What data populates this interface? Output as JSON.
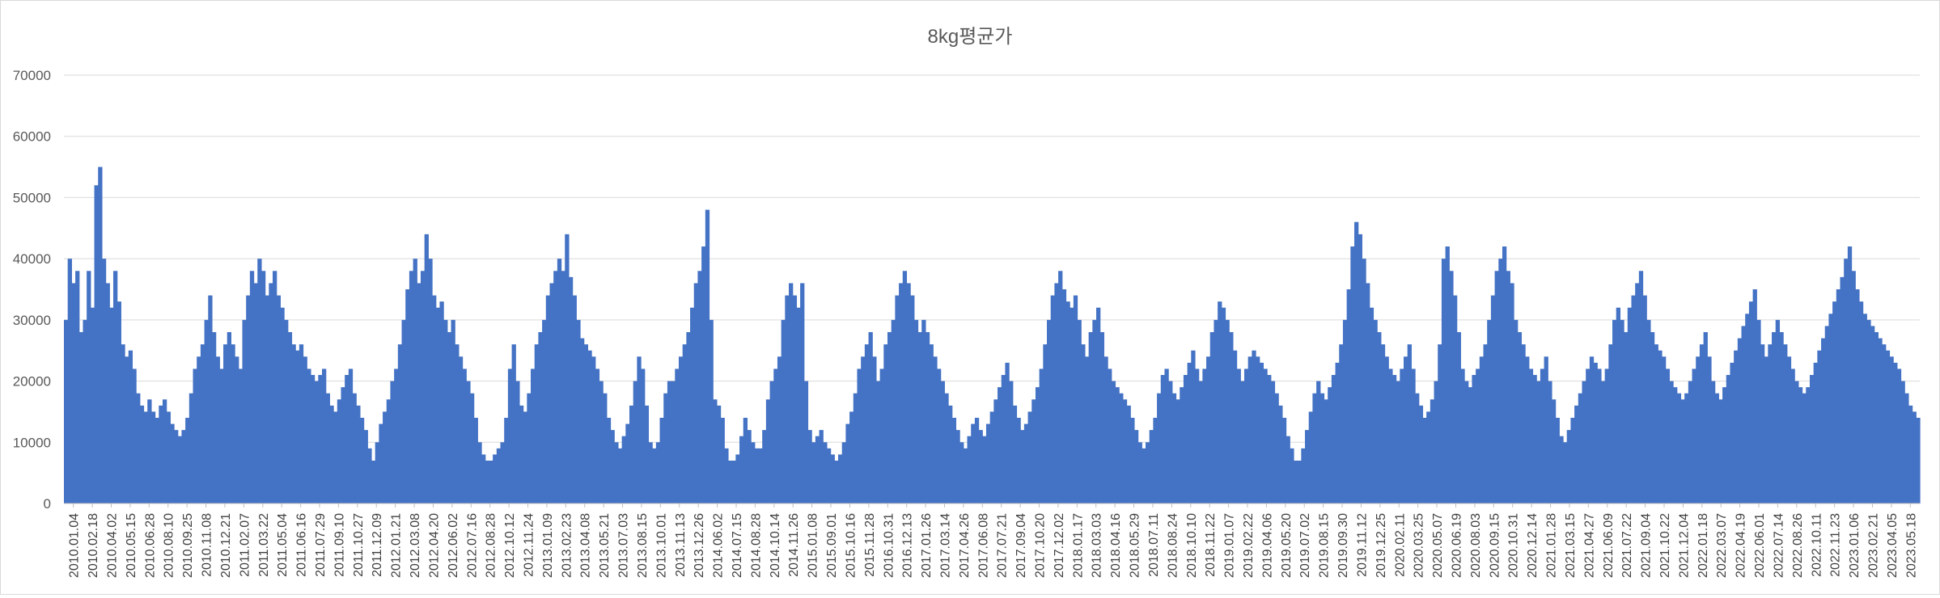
{
  "chart_data": {
    "type": "bar",
    "title": "8kg평균가",
    "xlabel": "",
    "ylabel": "",
    "ylim": [
      0,
      70000
    ],
    "yticks": [
      0,
      10000,
      20000,
      30000,
      40000,
      50000,
      60000,
      70000
    ],
    "grid": true,
    "legend": "none",
    "bar_color": "#4472C4",
    "x_tick_labels": [
      "2010.01.04",
      "2010.02.18",
      "2010.04.02",
      "2010.05.15",
      "2010.06.28",
      "2010.08.10",
      "2010.09.25",
      "2010.11.08",
      "2010.12.21",
      "2011.02.07",
      "2011.03.22",
      "2011.05.04",
      "2011.06.16",
      "2011.07.29",
      "2011.09.10",
      "2011.10.27",
      "2011.12.09",
      "2012.01.21",
      "2012.03.08",
      "2012.04.20",
      "2012.06.02",
      "2012.07.16",
      "2012.08.28",
      "2012.10.12",
      "2012.11.24",
      "2013.01.09",
      "2013.02.23",
      "2013.04.08",
      "2013.05.21",
      "2013.07.03",
      "2013.08.15",
      "2013.10.01",
      "2013.11.13",
      "2013.12.26",
      "2014.06.02",
      "2014.07.15",
      "2014.08.28",
      "2014.10.14",
      "2014.11.26",
      "2015.01.08",
      "2015.09.01",
      "2015.10.16",
      "2015.11.28",
      "2016.10.31",
      "2016.12.13",
      "2017.01.26",
      "2017.03.14",
      "2017.04.26",
      "2017.06.08",
      "2017.07.21",
      "2017.09.04",
      "2017.10.20",
      "2017.12.02",
      "2018.01.17",
      "2018.03.03",
      "2018.04.16",
      "2018.05.29",
      "2018.07.11",
      "2018.08.24",
      "2018.10.10",
      "2018.11.22",
      "2019.01.07",
      "2019.02.22",
      "2019.04.06",
      "2019.05.20",
      "2019.07.02",
      "2019.08.15",
      "2019.09.30",
      "2019.11.12",
      "2019.12.25",
      "2020.02.11",
      "2020.03.25",
      "2020.05.07",
      "2020.06.19",
      "2020.08.03",
      "2020.09.15",
      "2020.10.31",
      "2020.12.14",
      "2021.01.28",
      "2021.03.15",
      "2021.04.27",
      "2021.06.09",
      "2021.07.22",
      "2021.09.04",
      "2021.10.22",
      "2021.12.04",
      "2022.01.18",
      "2022.03.07",
      "2022.04.19",
      "2022.06.01",
      "2022.07.14",
      "2022.08.26",
      "2022.10.11",
      "2022.11.23",
      "2023.01.06",
      "2023.02.21",
      "2023.04.05",
      "2023.05.18"
    ],
    "series": [
      {
        "x_start": "2010.01.04",
        "x_end": "2023.06.01",
        "values": [
          30000,
          40000,
          36000,
          38000,
          28000,
          30000,
          38000,
          32000,
          52000,
          55000,
          40000,
          36000,
          32000,
          38000,
          33000,
          26000,
          24000,
          25000,
          22000,
          18000,
          16000,
          15000,
          17000,
          15000,
          14000,
          16000,
          17000,
          15000,
          13000,
          12000,
          11000,
          12000,
          14000,
          18000,
          22000,
          24000,
          26000,
          30000,
          34000,
          28000,
          24000,
          22000,
          26000,
          28000,
          26000,
          24000,
          22000,
          30000,
          34000,
          38000,
          36000,
          40000,
          38000,
          34000,
          36000,
          38000,
          34000,
          32000,
          30000,
          28000,
          26000,
          25000,
          26000,
          24000,
          22000,
          21000,
          20000,
          21000,
          22000,
          18000,
          16000,
          15000,
          17000,
          19000,
          21000,
          22000,
          18000,
          16000,
          14000,
          12000,
          9000,
          7000,
          10000,
          13000,
          15000,
          17000,
          20000,
          22000,
          26000,
          30000,
          35000,
          38000,
          40000,
          36000,
          38000,
          44000,
          40000,
          34000,
          32000,
          33000,
          30000,
          28000,
          30000,
          26000,
          24000,
          22000,
          20000,
          18000,
          14000,
          10000,
          8000,
          7000,
          7000,
          8000,
          9000,
          10000,
          14000,
          22000,
          26000,
          20000,
          16000,
          15000,
          18000,
          22000,
          26000,
          28000,
          30000,
          34000,
          36000,
          38000,
          40000,
          38000,
          44000,
          37000,
          34000,
          30000,
          27000,
          26000,
          25000,
          24000,
          22000,
          20000,
          18000,
          14000,
          12000,
          10000,
          9000,
          11000,
          13000,
          16000,
          20000,
          24000,
          22000,
          16000,
          10000,
          9000,
          10000,
          14000,
          18000,
          20000,
          20000,
          22000,
          24000,
          26000,
          28000,
          32000,
          36000,
          38000,
          42000,
          48000,
          30000,
          17000,
          16000,
          14000,
          9000,
          7000,
          7000,
          8000,
          11000,
          14000,
          12000,
          10000,
          9000,
          9000,
          12000,
          17000,
          20000,
          22000,
          24000,
          30000,
          34000,
          36000,
          34000,
          32000,
          36000,
          20000,
          12000,
          10000,
          11000,
          12000,
          10000,
          9000,
          8000,
          7000,
          8000,
          10000,
          13000,
          15000,
          18000,
          22000,
          24000,
          26000,
          28000,
          24000,
          20000,
          22000,
          26000,
          28000,
          30000,
          34000,
          36000,
          38000,
          36000,
          34000,
          30000,
          28000,
          30000,
          28000,
          26000,
          24000,
          22000,
          20000,
          18000,
          16000,
          14000,
          12000,
          10000,
          9000,
          11000,
          13000,
          14000,
          12000,
          11000,
          13000,
          15000,
          17000,
          19000,
          21000,
          23000,
          20000,
          16000,
          14000,
          12000,
          13000,
          15000,
          17000,
          19000,
          22000,
          26000,
          30000,
          34000,
          36000,
          38000,
          35000,
          33000,
          32000,
          34000,
          30000,
          26000,
          24000,
          28000,
          30000,
          32000,
          28000,
          24000,
          22000,
          20000,
          19000,
          18000,
          17000,
          16000,
          14000,
          12000,
          10000,
          9000,
          10000,
          12000,
          14000,
          18000,
          21000,
          22000,
          20000,
          18000,
          17000,
          19000,
          21000,
          23000,
          25000,
          22000,
          20000,
          22000,
          24000,
          28000,
          30000,
          33000,
          32000,
          30000,
          28000,
          25000,
          22000,
          20000,
          22000,
          24000,
          25000,
          24000,
          23000,
          22000,
          21000,
          20000,
          18000,
          16000,
          14000,
          11000,
          9000,
          7000,
          7000,
          9000,
          12000,
          15000,
          18000,
          20000,
          18000,
          17000,
          19000,
          21000,
          23000,
          26000,
          30000,
          35000,
          42000,
          46000,
          44000,
          40000,
          36000,
          32000,
          30000,
          28000,
          26000,
          24000,
          22000,
          21000,
          20000,
          22000,
          24000,
          26000,
          22000,
          18000,
          16000,
          14000,
          15000,
          17000,
          20000,
          26000,
          40000,
          42000,
          38000,
          34000,
          28000,
          22000,
          20000,
          19000,
          21000,
          22000,
          24000,
          26000,
          30000,
          34000,
          38000,
          40000,
          42000,
          38000,
          36000,
          30000,
          28000,
          26000,
          24000,
          22000,
          21000,
          20000,
          22000,
          24000,
          20000,
          17000,
          14000,
          11000,
          10000,
          12000,
          14000,
          16000,
          18000,
          20000,
          22000,
          24000,
          23000,
          22000,
          20000,
          22000,
          26000,
          30000,
          32000,
          30000,
          28000,
          32000,
          34000,
          36000,
          38000,
          34000,
          30000,
          28000,
          26000,
          25000,
          24000,
          22000,
          20000,
          19000,
          18000,
          17000,
          18000,
          20000,
          22000,
          24000,
          26000,
          28000,
          24000,
          20000,
          18000,
          17000,
          19000,
          21000,
          23000,
          25000,
          27000,
          29000,
          31000,
          33000,
          35000,
          30000,
          26000,
          24000,
          26000,
          28000,
          30000,
          28000,
          26000,
          24000,
          22000,
          20000,
          19000,
          18000,
          19000,
          21000,
          23000,
          25000,
          27000,
          29000,
          31000,
          33000,
          35000,
          37000,
          40000,
          42000,
          38000,
          35000,
          33000,
          31000,
          30000,
          29000,
          28000,
          27000,
          26000,
          25000,
          24000,
          23000,
          22000,
          20000,
          18000,
          16000,
          15000,
          14000
        ]
      }
    ]
  }
}
